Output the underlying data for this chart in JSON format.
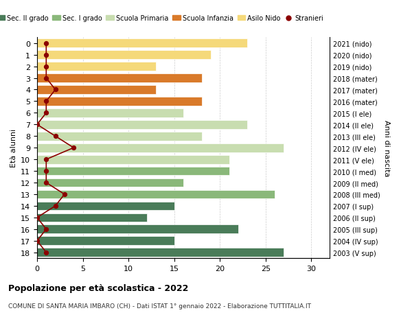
{
  "ages": [
    18,
    17,
    16,
    15,
    14,
    13,
    12,
    11,
    10,
    9,
    8,
    7,
    6,
    5,
    4,
    3,
    2,
    1,
    0
  ],
  "years": [
    "2003 (V sup)",
    "2004 (IV sup)",
    "2005 (III sup)",
    "2006 (II sup)",
    "2007 (I sup)",
    "2008 (III med)",
    "2009 (II med)",
    "2010 (I med)",
    "2011 (V ele)",
    "2012 (IV ele)",
    "2013 (III ele)",
    "2014 (II ele)",
    "2015 (I ele)",
    "2016 (mater)",
    "2017 (mater)",
    "2018 (mater)",
    "2019 (nido)",
    "2020 (nido)",
    "2021 (nido)"
  ],
  "bar_values": [
    27,
    15,
    22,
    12,
    15,
    26,
    16,
    21,
    21,
    27,
    18,
    23,
    16,
    18,
    13,
    18,
    13,
    19,
    23
  ],
  "bar_colors": [
    "#4a7c59",
    "#4a7c59",
    "#4a7c59",
    "#4a7c59",
    "#4a7c59",
    "#8ab87a",
    "#8ab87a",
    "#8ab87a",
    "#c8ddb0",
    "#c8ddb0",
    "#c8ddb0",
    "#c8ddb0",
    "#c8ddb0",
    "#d97a2a",
    "#d97a2a",
    "#d97a2a",
    "#f5d97a",
    "#f5d97a",
    "#f5d97a"
  ],
  "stranieri_values": [
    1,
    0,
    1,
    0,
    2,
    3,
    1,
    1,
    1,
    4,
    2,
    0,
    1,
    1,
    2,
    1,
    1,
    1,
    1
  ],
  "stranieri_color": "#8b0000",
  "legend_labels": [
    "Sec. II grado",
    "Sec. I grado",
    "Scuola Primaria",
    "Scuola Infanzia",
    "Asilo Nido",
    "Stranieri"
  ],
  "legend_colors": [
    "#4a7c59",
    "#8ab87a",
    "#c8ddb0",
    "#d97a2a",
    "#f5d97a",
    "#8b0000"
  ],
  "title": "Popolazione per età scolastica - 2022",
  "subtitle": "COMUNE DI SANTA MARIA IMBARO (CH) - Dati ISTAT 1° gennaio 2022 - Elaborazione TUTTITALIA.IT",
  "ylabel_left": "Età alunni",
  "ylabel_right": "Anni di nascita",
  "xlim": [
    0,
    32
  ],
  "ylim_bottom": 18.5,
  "ylim_top": -0.5,
  "bg_color": "#ffffff",
  "grid_color": "#cccccc",
  "bar_height": 0.75
}
